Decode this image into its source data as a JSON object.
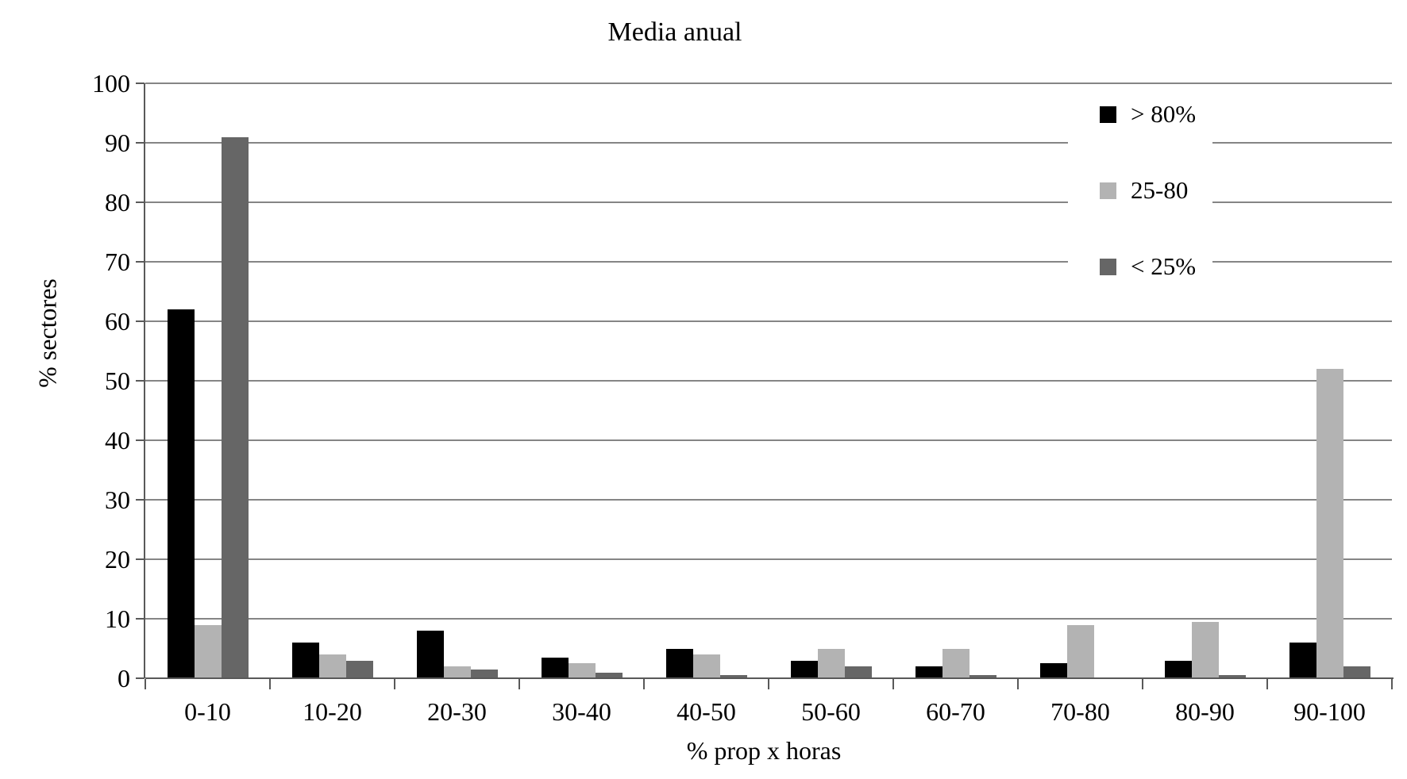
{
  "chart_data": {
    "type": "bar",
    "title": "Media anual",
    "xlabel": "% prop x horas",
    "ylabel": "% sectores",
    "ylim": [
      0,
      100
    ],
    "yticks": [
      0,
      10,
      20,
      30,
      40,
      50,
      60,
      70,
      80,
      90,
      100
    ],
    "grid": "horizontal",
    "legend_position": "top-right",
    "categories": [
      "0-10",
      "10-20",
      "20-30",
      "30-40",
      "40-50",
      "50-60",
      "60-70",
      "70-80",
      "80-90",
      "90-100"
    ],
    "series": [
      {
        "name": "> 80%",
        "color": "#000000",
        "values": [
          62,
          6,
          8,
          3.5,
          5,
          3,
          2,
          2.5,
          3,
          6
        ]
      },
      {
        "name": "25-80",
        "color": "#b3b3b3",
        "values": [
          9,
          4,
          2,
          2.5,
          4,
          5,
          5,
          9,
          9.5,
          52
        ]
      },
      {
        "name": "< 25%",
        "color": "#666666",
        "values": [
          91,
          3,
          1.5,
          1,
          0.5,
          2,
          0.5,
          0,
          0.5,
          2
        ]
      }
    ],
    "colors": {
      "gridline": "#858585",
      "axis": "#595959",
      "text": "#000000",
      "background": "#ffffff"
    }
  }
}
